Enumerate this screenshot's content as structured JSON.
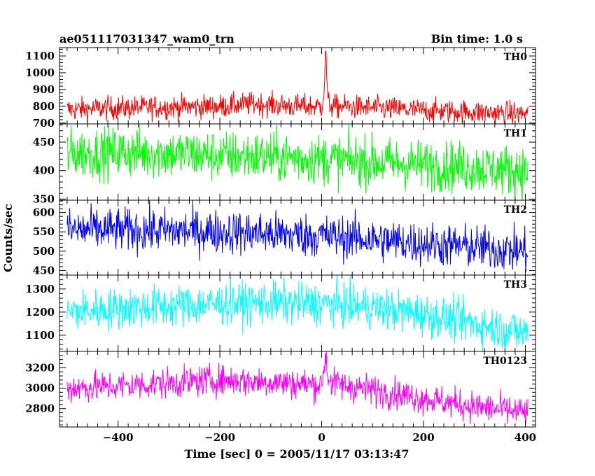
{
  "header": {
    "title": "ae051117031347_wam0_trn",
    "bin_time": "Bin time: 1.0 s"
  },
  "axes": {
    "ylabel": "Counts/sec",
    "xlabel": "Time [sec] 0 = 2005/11/17 03:13:47"
  },
  "chart_data": {
    "type": "line",
    "title": "ae051117031347_wam0_trn",
    "subtitle": "Bin time: 1.0 s",
    "xlabel": "Time [sec] 0 = 2005/11/17 03:13:47",
    "ylabel": "Counts/sec",
    "xlim": [
      -515,
      420
    ],
    "xticks": [
      -400,
      -200,
      0,
      200,
      400
    ],
    "panels": [
      {
        "name": "TH0",
        "color": "#ff0000",
        "ylim": [
          695,
          1150
        ],
        "yticks": [
          700,
          800,
          900,
          1000,
          1100
        ],
        "x": [
          -500,
          -400,
          -300,
          -200,
          -130,
          -50,
          0,
          5,
          8,
          12,
          20,
          100,
          200,
          300,
          400
        ],
        "y": [
          780,
          790,
          795,
          800,
          815,
          800,
          800,
          900,
          1150,
          820,
          800,
          790,
          775,
          765,
          755
        ],
        "noise": 35
      },
      {
        "name": "TH1",
        "color": "#00ff00",
        "ylim": [
          348,
          482
        ],
        "yticks": [
          350,
          400,
          450
        ],
        "x": [
          -500,
          -400,
          -300,
          -200,
          -100,
          0,
          100,
          200,
          300,
          400
        ],
        "y": [
          430,
          432,
          430,
          426,
          424,
          420,
          415,
          410,
          405,
          400
        ],
        "noise": 22
      },
      {
        "name": "TH2",
        "color": "#0000ff",
        "ylim": [
          438,
          632
        ],
        "yticks": [
          450,
          500,
          550,
          600
        ],
        "x": [
          -500,
          -400,
          -300,
          -200,
          -100,
          0,
          100,
          200,
          300,
          400
        ],
        "y": [
          555,
          555,
          553,
          550,
          545,
          540,
          530,
          520,
          510,
          500
        ],
        "noise": 28
      },
      {
        "name": "TH3",
        "color": "#00ffff",
        "ylim": [
          1030,
          1360
        ],
        "yticks": [
          1100,
          1200,
          1300
        ],
        "x": [
          -500,
          -400,
          -300,
          -200,
          -100,
          0,
          100,
          200,
          300,
          400
        ],
        "y": [
          1200,
          1215,
          1225,
          1235,
          1240,
          1235,
          1220,
          1190,
          1150,
          1110
        ],
        "noise": 45
      },
      {
        "name": "TH0123",
        "color": "#ff00ff",
        "ylim": [
          2620,
          3360
        ],
        "yticks": [
          2800,
          3000,
          3200
        ],
        "x": [
          -500,
          -400,
          -300,
          -200,
          -100,
          0,
          5,
          8,
          12,
          20,
          100,
          200,
          300,
          400
        ],
        "y": [
          3000,
          3020,
          3050,
          3080,
          3060,
          3030,
          3200,
          3350,
          3120,
          3050,
          2980,
          2900,
          2820,
          2760
        ],
        "noise": 75
      }
    ]
  }
}
